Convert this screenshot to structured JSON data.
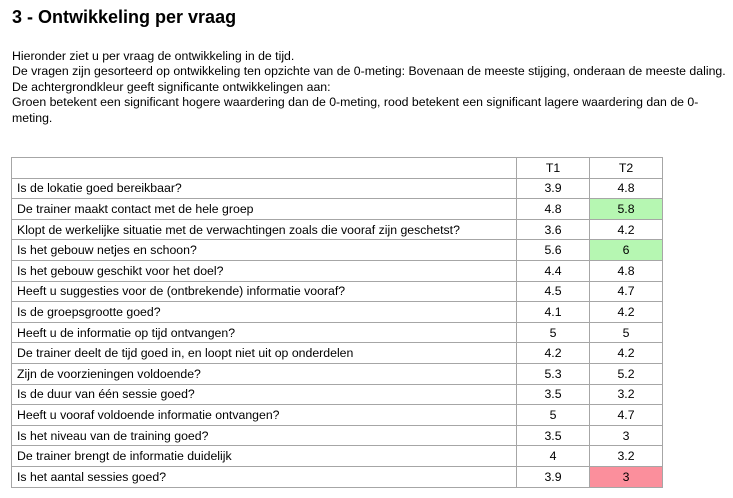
{
  "page": {
    "title": "3 - Ontwikkeling per vraag",
    "intro": [
      "Hieronder ziet u per vraag de ontwikkeling in de tijd.",
      "De vragen zijn gesorteerd op ontwikkeling ten opzichte van de 0-meting: Bovenaan de meeste stijging, onderaan de meeste daling.",
      "De achtergrondkleur geeft significante ontwikkelingen aan:",
      "Groen betekent een significant hogere waardering dan de 0-meting, rood betekent een significant lagere waardering dan de 0-meting."
    ]
  },
  "colors": {
    "significant_higher": "#b6f7b2",
    "significant_lower": "#fb8f9c",
    "border": "#a6a6a6"
  },
  "table": {
    "headers": [
      "",
      "T1",
      "T2"
    ],
    "rows": [
      {
        "question": "Is de lokatie goed bereikbaar?",
        "t1": "3.9",
        "t2": "4.8",
        "t2_flag": ""
      },
      {
        "question": "De trainer maakt contact met de hele groep",
        "t1": "4.8",
        "t2": "5.8",
        "t2_flag": "up"
      },
      {
        "question": "Klopt de werkelijke situatie met de verwachtingen zoals die vooraf zijn geschetst?",
        "t1": "3.6",
        "t2": "4.2",
        "t2_flag": ""
      },
      {
        "question": "Is het gebouw netjes en schoon?",
        "t1": "5.6",
        "t2": "6",
        "t2_flag": "up"
      },
      {
        "question": "Is het gebouw geschikt voor het doel?",
        "t1": "4.4",
        "t2": "4.8",
        "t2_flag": ""
      },
      {
        "question": "Heeft u suggesties voor de (ontbrekende) informatie vooraf?",
        "t1": "4.5",
        "t2": "4.7",
        "t2_flag": ""
      },
      {
        "question": "Is de groepsgrootte goed?",
        "t1": "4.1",
        "t2": "4.2",
        "t2_flag": ""
      },
      {
        "question": "Heeft u de informatie op tijd ontvangen?",
        "t1": "5",
        "t2": "5",
        "t2_flag": ""
      },
      {
        "question": "De trainer deelt de tijd goed in, en loopt niet uit op onderdelen",
        "t1": "4.2",
        "t2": "4.2",
        "t2_flag": ""
      },
      {
        "question": "Zijn de voorzieningen voldoende?",
        "t1": "5.3",
        "t2": "5.2",
        "t2_flag": ""
      },
      {
        "question": "Is de duur van één sessie goed?",
        "t1": "3.5",
        "t2": "3.2",
        "t2_flag": ""
      },
      {
        "question": "Heeft u vooraf voldoende informatie ontvangen?",
        "t1": "5",
        "t2": "4.7",
        "t2_flag": ""
      },
      {
        "question": "Is het niveau van de training goed?",
        "t1": "3.5",
        "t2": "3",
        "t2_flag": ""
      },
      {
        "question": "De trainer brengt de informatie duidelijk",
        "t1": "4",
        "t2": "3.2",
        "t2_flag": ""
      },
      {
        "question": "Is het aantal sessies goed?",
        "t1": "3.9",
        "t2": "3",
        "t2_flag": "down"
      }
    ]
  }
}
